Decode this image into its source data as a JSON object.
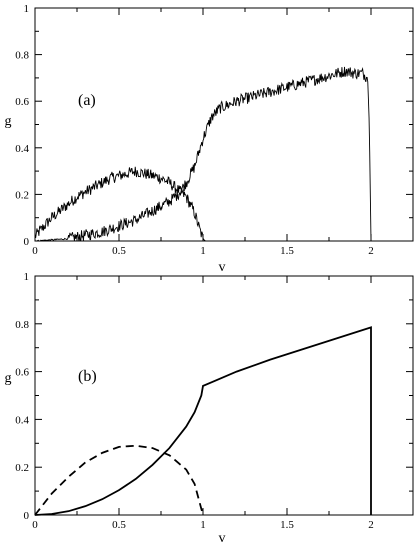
{
  "chart_data": [
    {
      "panel_label": "(a)",
      "type": "line",
      "xlabel": "v",
      "ylabel": "g",
      "xlim": [
        0,
        2.25
      ],
      "ylim": [
        0,
        1
      ],
      "x_ticks": [
        0,
        0.5,
        1,
        1.5,
        2
      ],
      "y_ticks": [
        0,
        0.2,
        0.4,
        0.6,
        0.8,
        1
      ],
      "x_tick_labels": [
        "0",
        "0.5",
        "1",
        "1.5",
        "2"
      ],
      "y_tick_labels": [
        "0",
        "0.2",
        "0.4",
        "0.6",
        "0.8",
        "1"
      ],
      "style": "noisy",
      "series": [
        {
          "x": [
            0,
            0.05,
            0.1,
            0.15,
            0.2,
            0.25,
            0.3,
            0.35,
            0.4,
            0.45,
            0.5,
            0.55,
            0.6,
            0.65,
            0.7,
            0.75,
            0.8,
            0.85,
            0.9,
            0.95,
            0.98,
            1.0,
            1.02
          ],
          "y": [
            0.02,
            0.06,
            0.1,
            0.13,
            0.16,
            0.19,
            0.21,
            0.23,
            0.25,
            0.27,
            0.28,
            0.29,
            0.3,
            0.29,
            0.28,
            0.27,
            0.25,
            0.22,
            0.19,
            0.12,
            0.05,
            0.01,
            0
          ]
        },
        {
          "x": [
            0,
            0.2,
            0.4,
            0.6,
            0.7,
            0.8,
            0.85,
            0.9,
            0.95,
            1.0,
            1.05,
            1.1,
            1.2,
            1.3,
            1.4,
            1.5,
            1.6,
            1.7,
            1.8,
            1.85,
            1.9,
            1.95,
            1.98,
            1.99,
            2.0
          ],
          "y": [
            0,
            0.01,
            0.04,
            0.09,
            0.13,
            0.17,
            0.2,
            0.25,
            0.32,
            0.44,
            0.53,
            0.57,
            0.6,
            0.62,
            0.64,
            0.66,
            0.68,
            0.7,
            0.72,
            0.73,
            0.72,
            0.72,
            0.7,
            0.5,
            0
          ]
        }
      ]
    },
    {
      "panel_label": "(b)",
      "type": "line",
      "xlabel": "v",
      "ylabel": "g",
      "xlim": [
        0,
        2.25
      ],
      "ylim": [
        0,
        1
      ],
      "x_ticks": [
        0,
        0.5,
        1,
        1.5,
        2
      ],
      "y_ticks": [
        0,
        0.2,
        0.4,
        0.6,
        0.8,
        1
      ],
      "x_tick_labels": [
        "0",
        "0.5",
        "1",
        "1.5",
        "2"
      ],
      "y_tick_labels": [
        "0",
        "0.2",
        "0.4",
        "0.6",
        "0.8",
        "1"
      ],
      "style": "smooth",
      "series": [
        {
          "line": "dashed",
          "x": [
            0,
            0.1,
            0.2,
            0.3,
            0.4,
            0.5,
            0.6,
            0.7,
            0.8,
            0.9,
            0.95,
            1.0
          ],
          "y": [
            0,
            0.09,
            0.16,
            0.22,
            0.26,
            0.285,
            0.29,
            0.28,
            0.25,
            0.19,
            0.13,
            0
          ]
        },
        {
          "line": "solid",
          "x": [
            0,
            0.1,
            0.2,
            0.3,
            0.4,
            0.5,
            0.6,
            0.7,
            0.8,
            0.9,
            0.95,
            0.99,
            1.0,
            1.2,
            1.4,
            1.6,
            1.8,
            2.0,
            2.0
          ],
          "y": [
            0,
            0.004,
            0.016,
            0.037,
            0.066,
            0.104,
            0.151,
            0.21,
            0.28,
            0.37,
            0.43,
            0.5,
            0.54,
            0.6,
            0.65,
            0.695,
            0.74,
            0.785,
            0
          ]
        }
      ]
    }
  ]
}
